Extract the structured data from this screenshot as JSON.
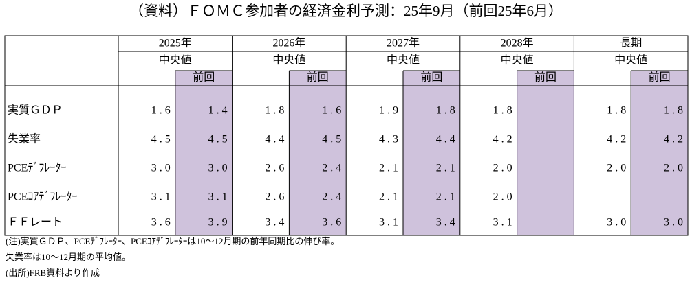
{
  "title": "（資料）ＦＯＭＣ参加者の経済金利予測：25年9月（前回25年6月）",
  "table": {
    "years": [
      "2025年",
      "2026年",
      "2027年",
      "2028年",
      "長期"
    ],
    "median_label": "中央値",
    "previous_label": "前回",
    "rows": [
      {
        "label": "実質ＧＤＰ",
        "cells": [
          "1.6",
          "1.4",
          "1.8",
          "1.6",
          "1.9",
          "1.8",
          "1.8",
          null,
          "1.8",
          "1.8"
        ]
      },
      {
        "label": "失業率",
        "cells": [
          "4.5",
          "4.5",
          "4.4",
          "4.5",
          "4.3",
          "4.4",
          "4.2",
          null,
          "4.2",
          "4.2"
        ]
      },
      {
        "label": "PCEﾃﾞﾌﾚｰﾀｰ",
        "cells": [
          "3.0",
          "3.0",
          "2.6",
          "2.4",
          "2.1",
          "2.1",
          "2.0",
          null,
          "2.0",
          "2.0"
        ]
      },
      {
        "label": "PCEｺｱﾃﾞﾌﾚｰﾀｰ",
        "cells": [
          "3.1",
          "3.1",
          "2.6",
          "2.4",
          "2.1",
          "2.1",
          "2.0",
          null,
          null,
          null
        ]
      },
      {
        "label": "ＦＦレート",
        "cells": [
          "3.6",
          "3.9",
          "3.4",
          "3.6",
          "3.1",
          "3.4",
          "3.1",
          null,
          "3.0",
          "3.0"
        ]
      }
    ]
  },
  "notes": [
    "(注)実質ＧＤＰ、PCEﾃﾞﾌﾚｰﾀｰ、PCEｺｱﾃﾞﾌﾚｰﾀｰは10～12月期の前年同期比の伸び率。",
    "失業率は10～12月期の平均値。",
    "(出所)FRB資料より作成"
  ]
}
